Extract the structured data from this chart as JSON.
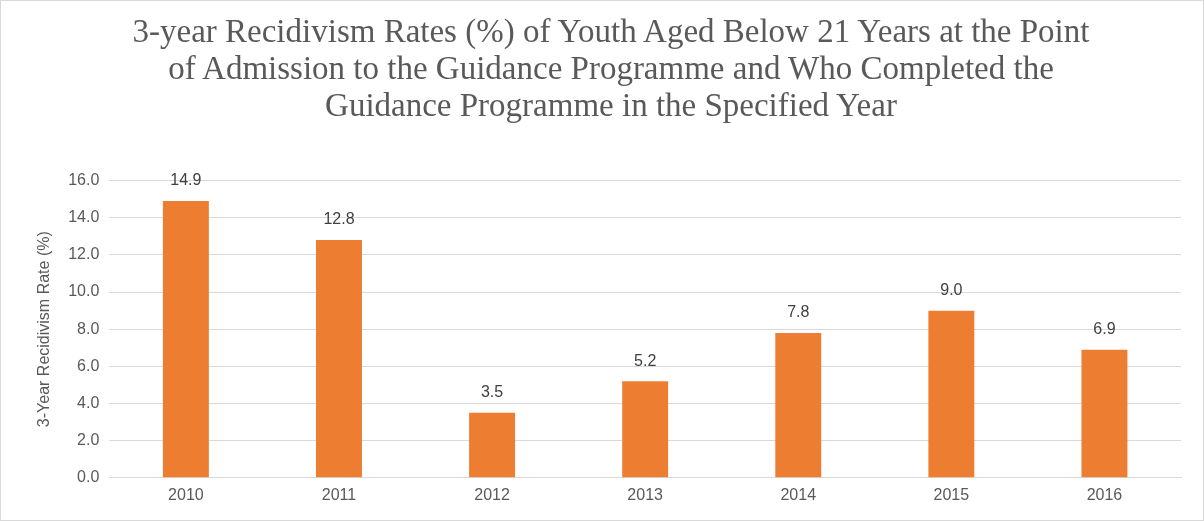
{
  "chart_data": {
    "type": "bar",
    "title": "3-year Recidivism Rates (%) of Youth Aged Below 21 Years at the Point of Admission to the Guidance Programme and Who Completed the Guidance Programme in the Specified Year",
    "ylabel": "3-Year Recidivism Rate (%)",
    "categories": [
      "2010",
      "2011",
      "2012",
      "2013",
      "2014",
      "2015",
      "2016"
    ],
    "values": [
      14.9,
      12.8,
      3.5,
      5.2,
      7.8,
      9.0,
      6.9
    ],
    "value_labels": [
      "14.9",
      "12.8",
      "3.5",
      "5.2",
      "7.8",
      "9.0",
      "6.9"
    ],
    "color": "#ed7d31",
    "ylim": [
      0,
      16
    ],
    "yticks": [
      {
        "value": 0,
        "label": "0.0"
      },
      {
        "value": 2,
        "label": "2.0"
      },
      {
        "value": 4,
        "label": "4.0"
      },
      {
        "value": 6,
        "label": "6.0"
      },
      {
        "value": 8,
        "label": "8.0"
      },
      {
        "value": 10,
        "label": "10.0"
      },
      {
        "value": 12,
        "label": "12.0"
      },
      {
        "value": 14,
        "label": "14.0"
      },
      {
        "value": 16,
        "label": "16.0"
      }
    ],
    "grid": "y",
    "legend": false
  }
}
